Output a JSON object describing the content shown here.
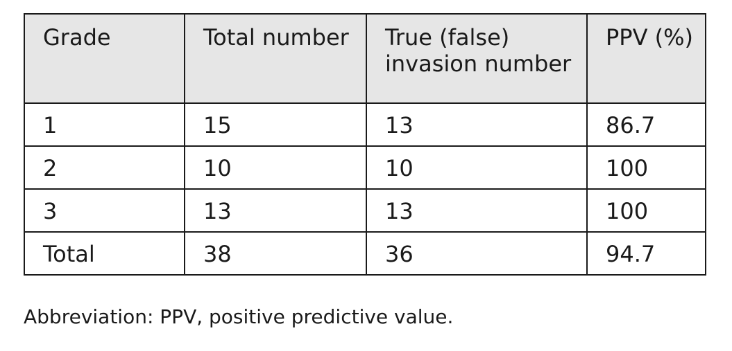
{
  "table": {
    "headers": [
      "Grade",
      "Total number",
      "True (false) invasion number",
      "PPV (%)"
    ],
    "rows": [
      [
        "1",
        "15",
        "13",
        "86.7"
      ],
      [
        "2",
        "10",
        "10",
        "100"
      ],
      [
        "3",
        "13",
        "13",
        "100"
      ],
      [
        "Total",
        "38",
        "36",
        "94.7"
      ]
    ]
  },
  "footnote": "Abbreviation: PPV, positive predictive value.",
  "colors": {
    "header_background": "#e6e6e6",
    "border": "#1a1a1a",
    "text": "#1a1a1a"
  }
}
